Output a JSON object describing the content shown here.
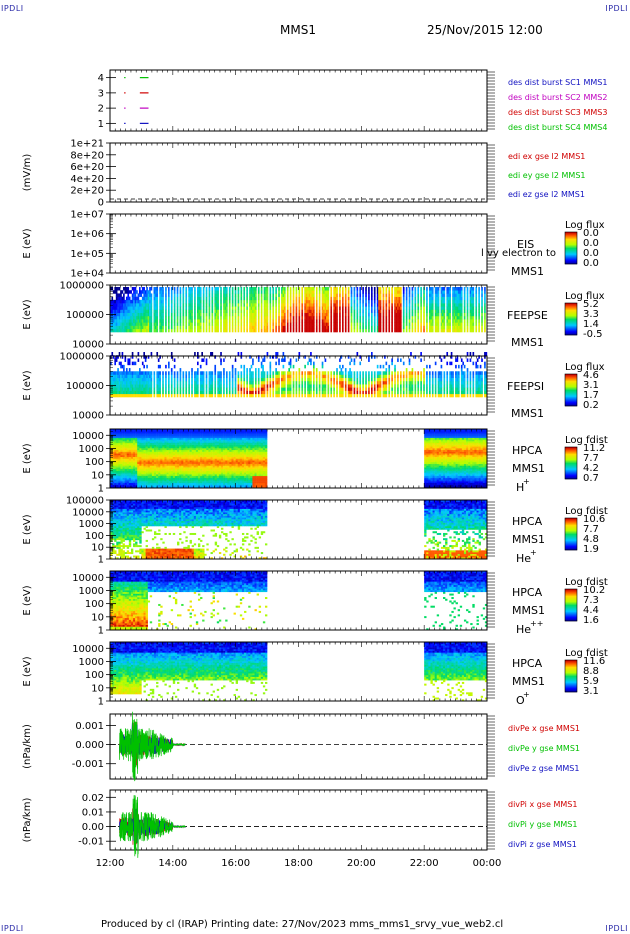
{
  "header": {
    "corner_labels": [
      "IPDLI",
      "IPDLI",
      "IPDLI",
      "IPDLI"
    ],
    "spacecraft": "MMS1",
    "datetime": "25/Nov/2015 12:00"
  },
  "footer": {
    "text": "Produced by cl (IRAP)   Printing date: 27/Nov/2023   mms_mms1_srvy_vue_web2.cl"
  },
  "colors": {
    "axis": "#000000",
    "mms1": "#1010c0",
    "mms2": "#c000c0",
    "mms3": "#d00000",
    "mms4": "#00c000"
  },
  "chart_data": [
    {
      "type": "line",
      "panel": "burst",
      "yticks": [
        "1",
        "2",
        "3",
        "4"
      ],
      "ylim": [
        0.5,
        4.5
      ],
      "legend": [
        {
          "text": "des dist burst SC1 MMS1",
          "color": "#1010c0"
        },
        {
          "text": "des dist burst SC2 MMS2",
          "color": "#c000c0"
        },
        {
          "text": "des dist burst SC3 MMS3",
          "color": "#d00000"
        },
        {
          "text": "des dist burst SC4 MMS4",
          "color": "#00c000"
        }
      ],
      "series": [
        {
          "color": "#00c000",
          "y": 4,
          "segments": [
            [
              12.45,
              12.47
            ],
            [
              12.95,
              13.2
            ]
          ]
        },
        {
          "color": "#d00000",
          "y": 3,
          "segments": [
            [
              12.45,
              12.47
            ],
            [
              12.95,
              13.2
            ]
          ]
        },
        {
          "color": "#c000c0",
          "y": 2,
          "segments": [
            [
              12.45,
              12.47
            ],
            [
              12.95,
              13.2
            ]
          ]
        },
        {
          "color": "#1010c0",
          "y": 1,
          "segments": [
            [
              12.45,
              12.47
            ],
            [
              12.95,
              13.2
            ]
          ]
        }
      ]
    },
    {
      "type": "line",
      "panel": "edi",
      "ylabel": "(mV/m)",
      "yticks": [
        "0",
        "2e+20",
        "4e+20",
        "6e+20",
        "8e+20",
        "1e+21"
      ],
      "ylim": [
        0,
        1e+21
      ],
      "zero_line": 0,
      "legend": [
        {
          "text": "edi ex gse l2 MMS1",
          "color": "#d00000"
        },
        {
          "text": "edi ey gse l2 MMS1",
          "color": "#00c000"
        },
        {
          "text": "edi ez gse l2 MMS1",
          "color": "#1010c0"
        }
      ]
    },
    {
      "type": "heatmap",
      "panel": "eis",
      "ylabel": "E (eV)",
      "yticks": [
        "1e+04",
        "1e+05",
        "1e+06",
        "1e+07"
      ],
      "ylim": [
        10000.0,
        10000000.0
      ],
      "log_y": true,
      "instrument": [
        "EIS",
        "MMS1"
      ],
      "overlay_text": "l  vy electron to",
      "colorbar": {
        "title": "Log flux",
        "ticks": [
          "0.0",
          "0.0",
          "0.0",
          "0.0"
        ]
      }
    },
    {
      "type": "heatmap",
      "panel": "feeps_e",
      "ylabel": "E (eV)",
      "yticks": [
        "10000",
        "100000",
        "1000000"
      ],
      "ylim": [
        10000,
        1000000
      ],
      "log_y": true,
      "instrument": [
        "FEEPSE",
        "MMS1"
      ],
      "colorbar": {
        "title": "Log flux",
        "ticks": [
          "5.2",
          "3.3",
          "1.4",
          "-0.5"
        ]
      }
    },
    {
      "type": "heatmap",
      "panel": "feeps_i",
      "ylabel": "E (eV)",
      "yticks": [
        "10000",
        "100000",
        "1000000"
      ],
      "ylim": [
        10000,
        1000000
      ],
      "log_y": true,
      "instrument": [
        "FEEPSI",
        "MMS1"
      ],
      "colorbar": {
        "title": "Log flux",
        "ticks": [
          "4.6",
          "3.1",
          "1.7",
          "0.2"
        ]
      }
    },
    {
      "type": "heatmap",
      "panel": "hpca_h",
      "ylabel": "E (eV)",
      "yticks": [
        "1",
        "10",
        "100",
        "1000",
        "10000"
      ],
      "ylim": [
        1,
        30000
      ],
      "log_y": true,
      "instrument": [
        "HPCA",
        "MMS1"
      ],
      "species": "H",
      "charge": "+",
      "data_intervals": [
        [
          12.0,
          17.0
        ],
        [
          22.0,
          24.0
        ]
      ],
      "colorbar": {
        "title": "Log fdist",
        "ticks": [
          "11.2",
          "7.7",
          "4.2",
          "0.7"
        ]
      }
    },
    {
      "type": "heatmap",
      "panel": "hpca_he",
      "ylabel": "E (eV)",
      "yticks": [
        "1",
        "10",
        "100",
        "1000",
        "10000",
        "100000"
      ],
      "ylim": [
        1,
        100000
      ],
      "log_y": true,
      "instrument": [
        "HPCA",
        "MMS1"
      ],
      "species": "He",
      "charge": "+",
      "data_intervals": [
        [
          12.0,
          17.0
        ],
        [
          22.0,
          24.0
        ]
      ],
      "colorbar": {
        "title": "Log fdist",
        "ticks": [
          "10.6",
          "7.7",
          "4.8",
          "1.9"
        ]
      }
    },
    {
      "type": "heatmap",
      "panel": "hpca_hepp",
      "ylabel": "E (eV)",
      "yticks": [
        "1",
        "10",
        "100",
        "1000",
        "10000"
      ],
      "ylim": [
        1,
        30000
      ],
      "log_y": true,
      "instrument": [
        "HPCA",
        "MMS1"
      ],
      "species": "He",
      "charge": "++",
      "data_intervals": [
        [
          12.0,
          17.0
        ],
        [
          22.0,
          24.0
        ]
      ],
      "colorbar": {
        "title": "Log fdist",
        "ticks": [
          "10.2",
          "7.3",
          "4.4",
          "1.6"
        ]
      }
    },
    {
      "type": "heatmap",
      "panel": "hpca_o",
      "ylabel": "E (eV)",
      "yticks": [
        "1",
        "10",
        "100",
        "1000",
        "10000"
      ],
      "ylim": [
        1,
        30000
      ],
      "log_y": true,
      "instrument": [
        "HPCA",
        "MMS1"
      ],
      "species": "O",
      "charge": "+",
      "data_intervals": [
        [
          12.0,
          17.0
        ],
        [
          22.0,
          24.0
        ]
      ],
      "colorbar": {
        "title": "Log fdist",
        "ticks": [
          "11.6",
          "8.8",
          "5.9",
          "3.1"
        ]
      }
    },
    {
      "type": "line",
      "panel": "divpe",
      "ylabel": "(nPa/km)",
      "yticks": [
        "-0.001",
        "0.000",
        "0.001"
      ],
      "ylim": [
        -0.0018,
        0.0016
      ],
      "zero_line": 0,
      "data_interval": [
        12.3,
        14.4
      ],
      "legend": [
        {
          "text": "divPe x gse MMS1",
          "color": "#d00000"
        },
        {
          "text": "divPe y gse MMS1",
          "color": "#00c000"
        },
        {
          "text": "divPe z gse MMS1",
          "color": "#1010c0"
        }
      ]
    },
    {
      "type": "line",
      "panel": "divpi",
      "ylabel": "(nPa/km)",
      "yticks": [
        "-0.01",
        "0.00",
        "0.01",
        "0.02"
      ],
      "ylim": [
        -0.016,
        0.025
      ],
      "zero_line": 0,
      "data_interval": [
        12.3,
        14.4
      ],
      "legend": [
        {
          "text": "divPi x gse MMS1",
          "color": "#d00000"
        },
        {
          "text": "divPi y gse MMS1",
          "color": "#00c000"
        },
        {
          "text": "divPi z gse MMS1",
          "color": "#1010c0"
        }
      ]
    }
  ],
  "time_axis": {
    "xlim": [
      12,
      24
    ],
    "ticks": [
      {
        "t": 12,
        "label": "12:00"
      },
      {
        "t": 14,
        "label": "14:00"
      },
      {
        "t": 16,
        "label": "16:00"
      },
      {
        "t": 18,
        "label": "18:00"
      },
      {
        "t": 20,
        "label": "20:00"
      },
      {
        "t": 22,
        "label": "22:00"
      },
      {
        "t": 24,
        "label": "00:00"
      }
    ]
  }
}
